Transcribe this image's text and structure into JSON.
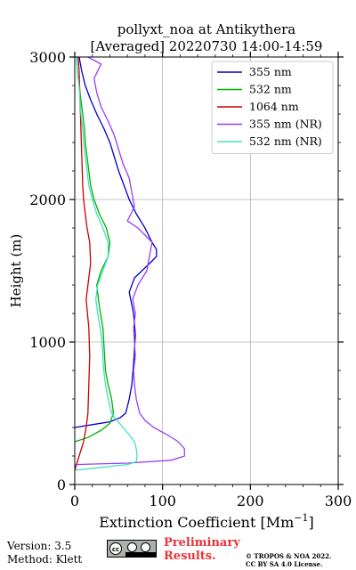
{
  "chart_data": {
    "type": "line",
    "title_line1": "pollyxt_noa at Antikythera",
    "title_line2": "[Averaged] 20220730 14:00-14:59",
    "xlabel": "Extinction Coefficient [Mm",
    "xlabel_sup": "−1",
    "xlabel_end": "]",
    "ylabel": "Height (m)",
    "xlim": [
      0,
      300
    ],
    "ylim": [
      0,
      3000
    ],
    "xticks": [
      0,
      100,
      200,
      300
    ],
    "yticks": [
      0,
      1000,
      2000,
      3000
    ],
    "grid": true,
    "legend_position": "top-right",
    "series": [
      {
        "name": "355 nm",
        "color": "#0000cc",
        "points": [
          [
            0,
            400
          ],
          [
            20,
            420
          ],
          [
            40,
            440
          ],
          [
            52,
            470
          ],
          [
            58,
            500
          ],
          [
            62,
            600
          ],
          [
            65,
            700
          ],
          [
            67,
            850
          ],
          [
            68,
            950
          ],
          [
            69,
            1050
          ],
          [
            67,
            1200
          ],
          [
            62,
            1350
          ],
          [
            68,
            1450
          ],
          [
            85,
            1550
          ],
          [
            93,
            1600
          ],
          [
            93,
            1650
          ],
          [
            88,
            1700
          ],
          [
            80,
            1800
          ],
          [
            70,
            1900
          ],
          [
            62,
            2000
          ],
          [
            56,
            2100
          ],
          [
            50,
            2200
          ],
          [
            45,
            2300
          ],
          [
            40,
            2400
          ],
          [
            33,
            2500
          ],
          [
            25,
            2600
          ],
          [
            18,
            2700
          ],
          [
            12,
            2800
          ],
          [
            8,
            2900
          ],
          [
            5,
            3000
          ]
        ]
      },
      {
        "name": "532 nm",
        "color": "#00b000",
        "points": [
          [
            0,
            300
          ],
          [
            15,
            330
          ],
          [
            30,
            380
          ],
          [
            40,
            430
          ],
          [
            44,
            500
          ],
          [
            42,
            600
          ],
          [
            38,
            700
          ],
          [
            35,
            800
          ],
          [
            34,
            900
          ],
          [
            33,
            1000
          ],
          [
            32,
            1100
          ],
          [
            28,
            1250
          ],
          [
            25,
            1400
          ],
          [
            30,
            1500
          ],
          [
            38,
            1600
          ],
          [
            40,
            1700
          ],
          [
            36,
            1800
          ],
          [
            28,
            1900
          ],
          [
            22,
            2000
          ],
          [
            18,
            2100
          ],
          [
            16,
            2200
          ],
          [
            14,
            2300
          ],
          [
            12,
            2400
          ],
          [
            11,
            2500
          ],
          [
            9,
            2600
          ],
          [
            7,
            2700
          ],
          [
            5,
            2800
          ],
          [
            3,
            2900
          ],
          [
            2,
            3000
          ]
        ]
      },
      {
        "name": "1064 nm",
        "color": "#cc0000",
        "points": [
          [
            0,
            100
          ],
          [
            5,
            200
          ],
          [
            10,
            300
          ],
          [
            13,
            400
          ],
          [
            15,
            500
          ],
          [
            16,
            700
          ],
          [
            17,
            900
          ],
          [
            16,
            1100
          ],
          [
            13,
            1300
          ],
          [
            15,
            1400
          ],
          [
            18,
            1550
          ],
          [
            17,
            1700
          ],
          [
            14,
            1800
          ],
          [
            12,
            1900
          ],
          [
            10,
            2000
          ],
          [
            9,
            2100
          ],
          [
            8,
            2300
          ],
          [
            7,
            2500
          ],
          [
            6,
            2700
          ],
          [
            5,
            2900
          ],
          [
            4,
            3000
          ]
        ]
      },
      {
        "name": "355 nm (NR)",
        "color": "#9b3df5",
        "points": [
          [
            0,
            140
          ],
          [
            60,
            150
          ],
          [
            110,
            170
          ],
          [
            125,
            200
          ],
          [
            125,
            250
          ],
          [
            118,
            300
          ],
          [
            105,
            350
          ],
          [
            90,
            400
          ],
          [
            80,
            450
          ],
          [
            74,
            500
          ],
          [
            70,
            600
          ],
          [
            68,
            700
          ],
          [
            67,
            800
          ],
          [
            69,
            900
          ],
          [
            68,
            1000
          ],
          [
            67,
            1100
          ],
          [
            69,
            1200
          ],
          [
            66,
            1300
          ],
          [
            72,
            1400
          ],
          [
            77,
            1450
          ],
          [
            82,
            1500
          ],
          [
            85,
            1600
          ],
          [
            88,
            1700
          ],
          [
            80,
            1750
          ],
          [
            72,
            1800
          ],
          [
            60,
            1850
          ],
          [
            68,
            1950
          ],
          [
            65,
            2050
          ],
          [
            62,
            2150
          ],
          [
            55,
            2250
          ],
          [
            50,
            2350
          ],
          [
            45,
            2450
          ],
          [
            38,
            2550
          ],
          [
            30,
            2650
          ],
          [
            25,
            2750
          ],
          [
            22,
            2850
          ],
          [
            30,
            2950
          ],
          [
            15,
            3000
          ]
        ]
      },
      {
        "name": "532 nm (NR)",
        "color": "#40e0c0",
        "points": [
          [
            0,
            100
          ],
          [
            30,
            120
          ],
          [
            60,
            140
          ],
          [
            70,
            160
          ],
          [
            71,
            200
          ],
          [
            70,
            250
          ],
          [
            68,
            300
          ],
          [
            62,
            350
          ],
          [
            55,
            400
          ],
          [
            48,
            450
          ],
          [
            42,
            500
          ],
          [
            38,
            600
          ],
          [
            35,
            700
          ],
          [
            33,
            800
          ],
          [
            32,
            900
          ],
          [
            31,
            1000
          ],
          [
            29,
            1100
          ],
          [
            26,
            1200
          ],
          [
            24,
            1300
          ],
          [
            26,
            1400
          ],
          [
            32,
            1500
          ],
          [
            38,
            1600
          ],
          [
            38,
            1700
          ],
          [
            32,
            1800
          ],
          [
            25,
            1900
          ],
          [
            20,
            2000
          ],
          [
            16,
            2100
          ],
          [
            14,
            2200
          ],
          [
            12,
            2300
          ],
          [
            10,
            2400
          ],
          [
            9,
            2500
          ],
          [
            7,
            2600
          ],
          [
            6,
            2700
          ],
          [
            5,
            2800
          ],
          [
            3,
            2900
          ],
          [
            2,
            3000
          ]
        ]
      }
    ]
  },
  "footer": {
    "version": "Version: 3.5",
    "method": "Method: Klett",
    "preliminary": "Preliminary Results.",
    "copyright_line1": "© TROPOS & NOA 2022.",
    "copyright_line2": "CC BY SA 4.0 License.",
    "license_badge": "CC BY SA"
  }
}
